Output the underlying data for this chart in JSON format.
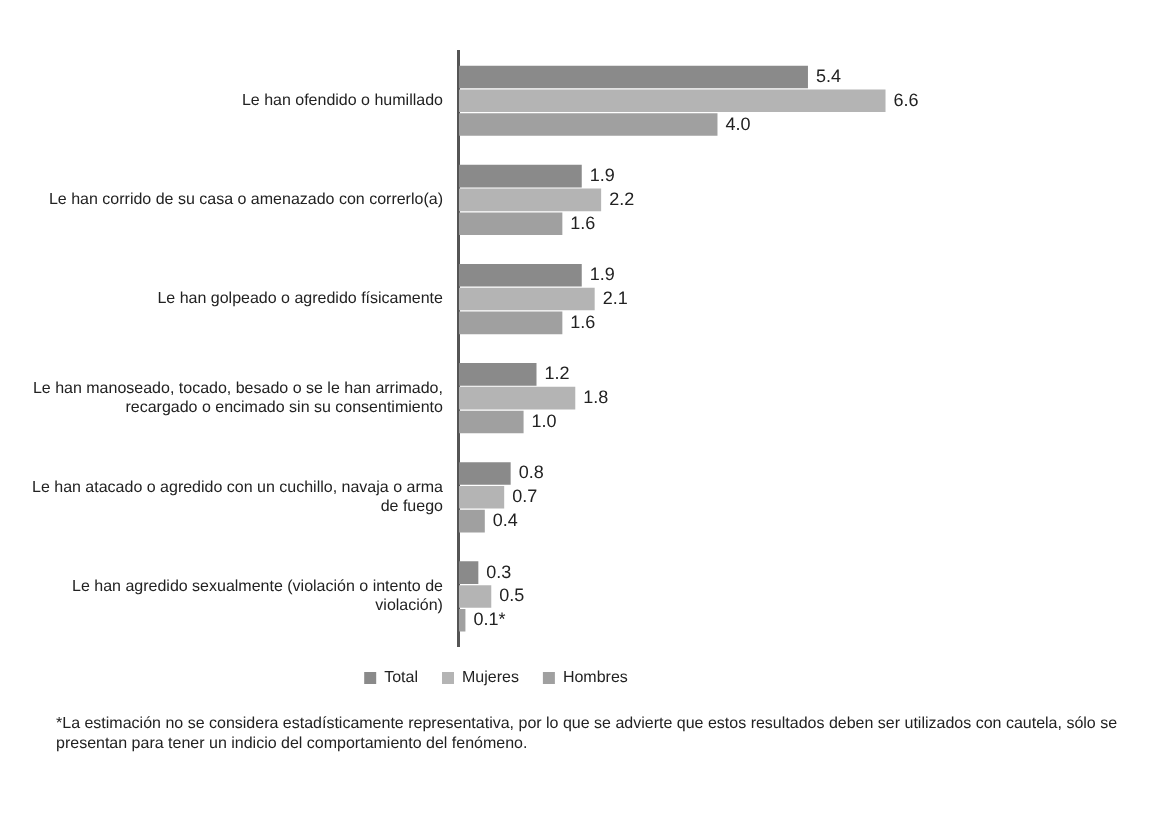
{
  "chart_data": {
    "type": "bar",
    "orientation": "horizontal",
    "categories": [
      "Le han ofendido o humillado",
      "Le han corrido de su casa o amenazado con correrlo(a)",
      "Le han golpeado o agredido físicamente",
      "Le han manoseado, tocado, besado o se le han arrimado, recargado o encimado sin su consentimiento",
      "Le han atacado o agredido con un cuchillo, navaja o arma de fuego",
      "Le han agredido sexualmente (violación o intento de violación)"
    ],
    "series": [
      {
        "name": "Total",
        "color": "#8a8a8a",
        "values": [
          5.4,
          1.9,
          1.9,
          1.2,
          0.8,
          0.3
        ],
        "value_labels": [
          "5.4",
          "1.9",
          "1.9",
          "1.2",
          "0.8",
          "0.3"
        ]
      },
      {
        "name": "Mujeres",
        "color": "#b4b4b4",
        "values": [
          6.6,
          2.2,
          2.1,
          1.8,
          0.7,
          0.5
        ],
        "value_labels": [
          "6.6",
          "2.2",
          "2.1",
          "1.8",
          "0.7",
          "0.5"
        ]
      },
      {
        "name": "Hombres",
        "color": "#a0a0a0",
        "values": [
          4.0,
          1.6,
          1.6,
          1.0,
          0.4,
          0.1
        ],
        "value_labels": [
          "4.0",
          "1.6",
          "1.6",
          "1.0",
          "0.4",
          "0.1*"
        ]
      }
    ],
    "tick_labels": "y",
    "grid": false,
    "legend": "bottom",
    "annotations": [
      "*La estimación no se considera estadísticamente representativa, por lo que se advierte que estos resultados deben ser utilizados con cautela, sólo se presentan para tener un indicio del comportamiento del fenómeno."
    ]
  }
}
